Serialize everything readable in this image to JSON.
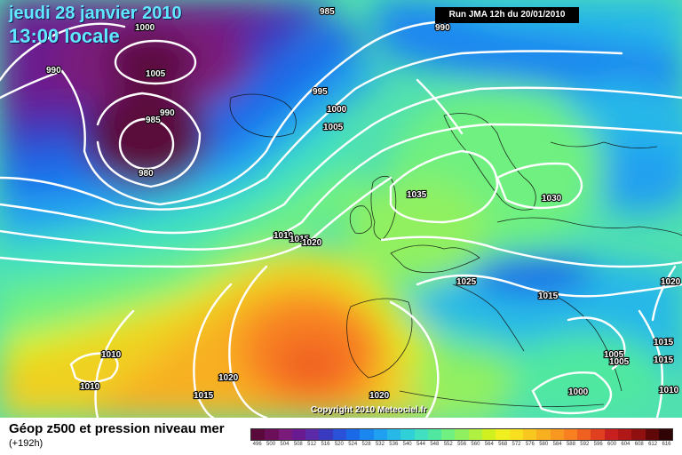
{
  "map": {
    "title_date": "jeudi 28 janvier 2010",
    "title_time": "13:00 locale",
    "run_info": "Run JMA 12h du 20/01/2010",
    "copyright": "Copyright 2010 Meteociel.fr",
    "isobar_labels": [
      "985",
      "990",
      "1000",
      "1005",
      "990",
      "995",
      "1000",
      "1005",
      "985",
      "990",
      "980",
      "1035",
      "1030",
      "1010",
      "1015",
      "1020",
      "1025",
      "1015",
      "1020",
      "1010",
      "1010",
      "1015",
      "1020",
      "1020",
      "1005",
      "1005",
      "1015",
      "1015",
      "1010",
      "1000"
    ]
  },
  "legend": {
    "title": "Géop z500 et pression niveau mer",
    "subtitle": "(+192h)",
    "scale_values": [
      "496",
      "500",
      "504",
      "508",
      "512",
      "516",
      "520",
      "524",
      "528",
      "532",
      "536",
      "540",
      "544",
      "548",
      "552",
      "556",
      "560",
      "564",
      "568",
      "572",
      "576",
      "580",
      "584",
      "588",
      "592",
      "596",
      "600",
      "604",
      "608",
      "612",
      "616"
    ],
    "scale_colors": [
      "#5a0a3a",
      "#6b0f5a",
      "#7a1a7a",
      "#6a1a90",
      "#5a2aa8",
      "#3a3ac0",
      "#2a52d8",
      "#1a6ae8",
      "#1a86f0",
      "#20a0f0",
      "#28b8e8",
      "#30d0d8",
      "#40e0c0",
      "#50e8a0",
      "#70f080",
      "#90f060",
      "#b0f040",
      "#d0f020",
      "#f0f020",
      "#f8e020",
      "#f8c820",
      "#f8b020",
      "#f89820",
      "#f88020",
      "#f06020",
      "#e04020",
      "#c82020",
      "#b01818",
      "#901010",
      "#600808",
      "#300404"
    ]
  }
}
